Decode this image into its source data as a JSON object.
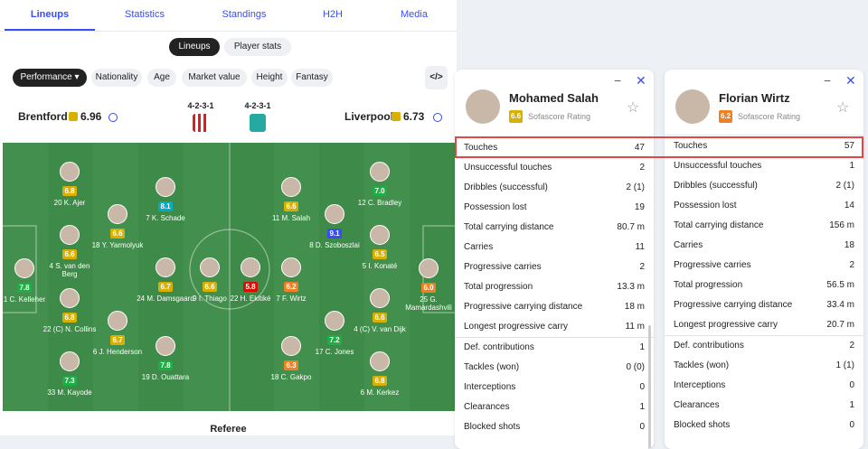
{
  "tabs": [
    "Lineups",
    "Statistics",
    "Standings",
    "H2H",
    "Media"
  ],
  "subtabs": [
    "Lineups",
    "Player stats"
  ],
  "filters": [
    "Performance",
    "Nationality",
    "Age",
    "Market value",
    "Height",
    "Fantasy"
  ],
  "embed": "</>",
  "teams": {
    "home": {
      "name": "Brentford",
      "rating": "6.96",
      "formation": "4-2-3-1"
    },
    "away": {
      "name": "Liverpool",
      "rating": "6.73",
      "formation": "4-2-3-1"
    }
  },
  "players": [
    {
      "name": "1 C. Kelleher",
      "rating": "7.8"
    },
    {
      "name": "20 K. Ajer",
      "rating": "6.8"
    },
    {
      "name": "4 S. van den Berg",
      "rating": "6.6"
    },
    {
      "name": "22 (C) N. Collins",
      "rating": "6.8"
    },
    {
      "name": "33 M. Kayode",
      "rating": "7.3"
    },
    {
      "name": "18 Y. Yarmolyuk",
      "rating": "6.6"
    },
    {
      "name": "6 J. Henderson",
      "rating": "6.7"
    },
    {
      "name": "7 K. Schade",
      "rating": "8.1"
    },
    {
      "name": "24 M. Damsgaard",
      "rating": "6.7"
    },
    {
      "name": "19 D. Ouattara",
      "rating": "7.8"
    },
    {
      "name": "9 I. Thiago",
      "rating": "6.6"
    },
    {
      "name": "22 H. Ekitiké",
      "rating": "5.8"
    },
    {
      "name": "11 M. Salah",
      "rating": "6.6"
    },
    {
      "name": "7 F. Wirtz",
      "rating": "6.2"
    },
    {
      "name": "18 C. Gakpo",
      "rating": "6.3"
    },
    {
      "name": "8 D. Szoboszlai",
      "rating": "9.1"
    },
    {
      "name": "17 C. Jones",
      "rating": "7.2"
    },
    {
      "name": "12 C. Bradley",
      "rating": "7.0"
    },
    {
      "name": "5 I. Konaté",
      "rating": "6.5"
    },
    {
      "name": "4 (C) V. van Dijk",
      "rating": "6.6"
    },
    {
      "name": "6 M. Kerkez",
      "rating": "6.8"
    },
    {
      "name": "25 G. Mamardashvili",
      "rating": "6.0"
    }
  ],
  "referee": "Referee",
  "cards": [
    {
      "name": "Mohamed Salah",
      "rating": "6.6",
      "rating_label": "Sofascore Rating",
      "stats": [
        {
          "label": "Touches",
          "value": "47"
        },
        {
          "label": "Unsuccessful touches",
          "value": "2"
        },
        {
          "label": "Dribbles (successful)",
          "value": "2 (1)"
        },
        {
          "label": "Possession lost",
          "value": "19"
        },
        {
          "label": "Total carrying distance",
          "value": "80.7 m"
        },
        {
          "label": "Carries",
          "value": "11"
        },
        {
          "label": "Progressive carries",
          "value": "2"
        },
        {
          "label": "Total progression",
          "value": "13.3 m"
        },
        {
          "label": "Progressive carrying distance",
          "value": "18 m"
        },
        {
          "label": "Longest progressive carry",
          "value": "11 m"
        },
        {
          "label": "Def. contributions",
          "value": "1"
        },
        {
          "label": "Tackles (won)",
          "value": "0 (0)"
        },
        {
          "label": "Interceptions",
          "value": "0"
        },
        {
          "label": "Clearances",
          "value": "1"
        },
        {
          "label": "Blocked shots",
          "value": "0"
        }
      ]
    },
    {
      "name": "Florian Wirtz",
      "rating": "6.2",
      "rating_label": "Sofascore Rating",
      "stats": [
        {
          "label": "Touches",
          "value": "57"
        },
        {
          "label": "Unsuccessful touches",
          "value": "1"
        },
        {
          "label": "Dribbles (successful)",
          "value": "2 (1)"
        },
        {
          "label": "Possession lost",
          "value": "14"
        },
        {
          "label": "Total carrying distance",
          "value": "156 m"
        },
        {
          "label": "Carries",
          "value": "18"
        },
        {
          "label": "Progressive carries",
          "value": "2"
        },
        {
          "label": "Total progression",
          "value": "56.5 m"
        },
        {
          "label": "Progressive carrying distance",
          "value": "33.4 m"
        },
        {
          "label": "Longest progressive carry",
          "value": "20.7 m"
        },
        {
          "label": "Def. contributions",
          "value": "2"
        },
        {
          "label": "Tackles (won)",
          "value": "1 (1)"
        },
        {
          "label": "Interceptions",
          "value": "0"
        },
        {
          "label": "Clearances",
          "value": "1"
        },
        {
          "label": "Blocked shots",
          "value": "0"
        }
      ]
    }
  ]
}
